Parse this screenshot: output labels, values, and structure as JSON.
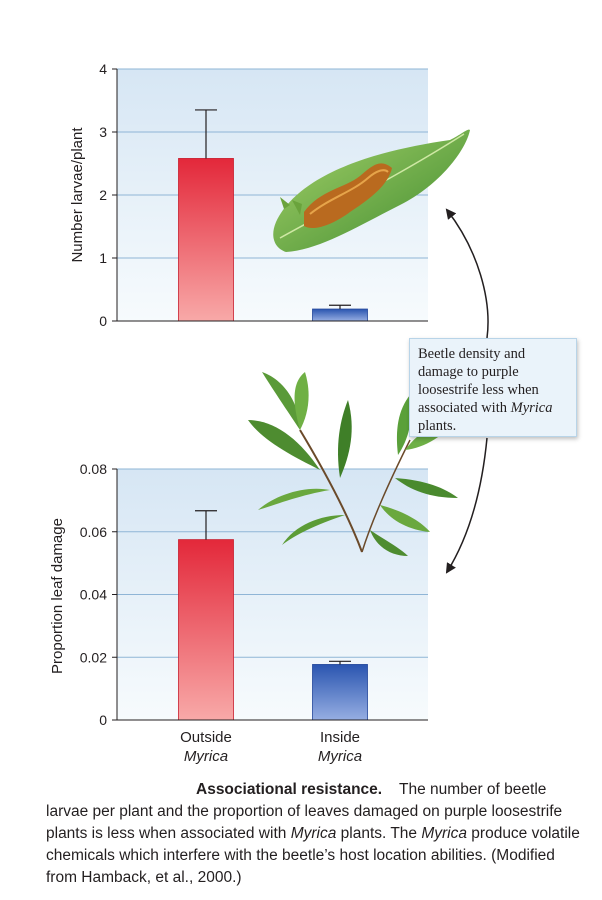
{
  "chart_data": [
    {
      "type": "bar",
      "ylabel": "Number larvae/plant",
      "ylim": [
        0,
        4
      ],
      "yticks": [
        "0",
        "1",
        "2",
        "3",
        "4"
      ],
      "categories": [
        "Outside Myrica",
        "Inside Myrica"
      ],
      "values": [
        2.58,
        0.19
      ],
      "error_upper": [
        3.35,
        0.25
      ],
      "grid": true
    },
    {
      "type": "bar",
      "ylabel": "Proportion leaf damage",
      "ylim": [
        0,
        0.08
      ],
      "yticks": [
        "0",
        "0.02",
        "0.04",
        "0.06",
        "0.08"
      ],
      "categories": [
        "Outside Myrica",
        "Inside Myrica"
      ],
      "values": [
        0.0575,
        0.0177
      ],
      "error_upper": [
        0.0667,
        0.0187
      ],
      "grid": true
    }
  ],
  "categories_display": [
    {
      "line1": "Outside",
      "line2": "Myrica"
    },
    {
      "line1": "Inside",
      "line2": "Myrica"
    }
  ],
  "callout": {
    "text": "Beetle density and damage to purple loosestrife less when associated with",
    "italic": "Myrica",
    "tail": " plants."
  },
  "caption": {
    "title": "Associational resistance.",
    "body_1": "The number of beetle larvae per plant and the proportion of leaves damaged on purple loosestrife plants is less when associated with ",
    "italic_1": "Myrica",
    "body_2": " plants. The ",
    "italic_2": "Myrica",
    "body_3": " produce volatile chemicals which interfere with the beetle’s host location abilities. (Modified from Hamback, et al., 2000.)"
  },
  "illustrations": [
    "caterpillar-on-leaf",
    "myrica-plant-sprig"
  ],
  "colors": {
    "panel_top": "#d6e6f4",
    "panel_bottom": "#f7fbfd",
    "grid": "#8fb5d6",
    "bar_outside_top": "#e3283a",
    "bar_outside_bottom": "#f8a9a8",
    "bar_inside_top": "#2a55b0",
    "bar_inside_bottom": "#96aee2",
    "arrow": "#231f20"
  }
}
